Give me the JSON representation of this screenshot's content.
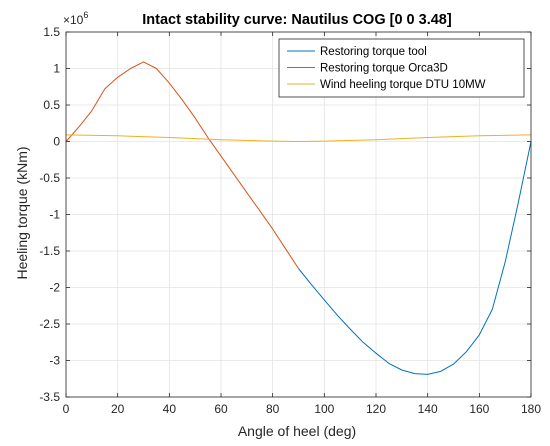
{
  "chart_data": {
    "type": "line",
    "title": "Intact stability curve: Nautilus COG [0 0 3.48]",
    "xlabel": "Angle of heel (deg)",
    "ylabel": "Heeling torque (kNm)",
    "y_exponent_base": "×10",
    "y_exponent_power": "6",
    "xlim": [
      0,
      180
    ],
    "ylim": [
      -3.5,
      1.5
    ],
    "grid": true,
    "legend_location": "top-right",
    "x_ticks": [
      0,
      20,
      40,
      60,
      80,
      100,
      120,
      140,
      160,
      180
    ],
    "x_tick_labels": [
      "0",
      "20",
      "40",
      "60",
      "80",
      "100",
      "120",
      "140",
      "160",
      "180"
    ],
    "y_ticks": [
      -3.5,
      -3,
      -2.5,
      -2,
      -1.5,
      -1,
      -0.5,
      0,
      0.5,
      1,
      1.5
    ],
    "y_tick_labels": [
      "-3.5",
      "-3",
      "-2.5",
      "-2",
      "-1.5",
      "-1",
      "-0.5",
      "0",
      "0.5",
      "1",
      "1.5"
    ],
    "series": [
      {
        "name": "Restoring torque tool",
        "color": "#0072BD",
        "x": [
          90,
          95,
          100,
          105,
          110,
          115,
          120,
          125,
          130,
          135,
          140,
          145,
          150,
          155,
          160,
          165,
          170,
          175,
          180
        ],
        "y": [
          -1.74,
          -1.96,
          -2.17,
          -2.38,
          -2.57,
          -2.75,
          -2.9,
          -3.04,
          -3.13,
          -3.18,
          -3.19,
          -3.15,
          -3.05,
          -2.88,
          -2.65,
          -2.3,
          -1.65,
          -0.85,
          0.0
        ]
      },
      {
        "name": "Restoring torque Orca3D",
        "color": "#D95319",
        "x": [
          0,
          5,
          10,
          15,
          20,
          25,
          30,
          35,
          40,
          45,
          50,
          55,
          60,
          65,
          70,
          75,
          80,
          85,
          90
        ],
        "y": [
          0.0,
          0.2,
          0.42,
          0.72,
          0.88,
          1.0,
          1.09,
          1.0,
          0.8,
          0.57,
          0.32,
          0.05,
          -0.2,
          -0.45,
          -0.7,
          -0.95,
          -1.2,
          -1.47,
          -1.74
        ]
      },
      {
        "name": "Wind heeling torque DTU 10MW",
        "color": "#EDB120",
        "x": [
          0,
          20,
          40,
          60,
          80,
          90,
          100,
          120,
          140,
          160,
          180
        ],
        "y": [
          0.09,
          0.078,
          0.055,
          0.025,
          0.005,
          0.0,
          0.005,
          0.025,
          0.055,
          0.08,
          0.09
        ]
      }
    ]
  }
}
